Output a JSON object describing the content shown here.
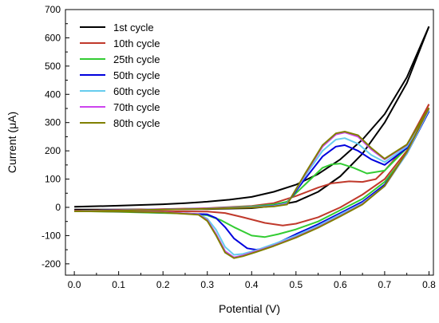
{
  "chart_data": {
    "type": "line",
    "title": "",
    "xlabel": "Potential (V)",
    "ylabel": "Current (μA)",
    "xlim": [
      -0.02,
      0.81
    ],
    "ylim": [
      -240,
      700
    ],
    "xticks": [
      "0.0",
      "0.1",
      "0.2",
      "0.3",
      "0.4",
      "0.5",
      "0.6",
      "0.7",
      "0.8"
    ],
    "yticks": [
      "-200",
      "-100",
      "0",
      "100",
      "200",
      "300",
      "400",
      "500",
      "600",
      "700"
    ],
    "legend_position": "top-left",
    "series": [
      {
        "name": "1st cycle",
        "color": "#000000",
        "forward": [
          [
            0,
            2
          ],
          [
            0.1,
            6
          ],
          [
            0.2,
            11
          ],
          [
            0.25,
            15
          ],
          [
            0.3,
            20
          ],
          [
            0.35,
            27
          ],
          [
            0.4,
            37
          ],
          [
            0.45,
            55
          ],
          [
            0.5,
            80
          ],
          [
            0.55,
            118
          ],
          [
            0.6,
            170
          ],
          [
            0.65,
            240
          ],
          [
            0.7,
            330
          ],
          [
            0.75,
            460
          ],
          [
            0.8,
            640
          ]
        ],
        "reverse": [
          [
            0.8,
            640
          ],
          [
            0.75,
            440
          ],
          [
            0.7,
            300
          ],
          [
            0.65,
            190
          ],
          [
            0.6,
            110
          ],
          [
            0.55,
            55
          ],
          [
            0.5,
            20
          ],
          [
            0.45,
            5
          ],
          [
            0.4,
            -3
          ],
          [
            0.3,
            -6
          ],
          [
            0.2,
            -7
          ],
          [
            0.1,
            -8
          ],
          [
            0,
            -8
          ]
        ]
      },
      {
        "name": "10th cycle",
        "color": "#c0392b",
        "forward": [
          [
            0,
            -12
          ],
          [
            0.1,
            -9
          ],
          [
            0.2,
            -6
          ],
          [
            0.3,
            -3
          ],
          [
            0.4,
            5
          ],
          [
            0.45,
            15
          ],
          [
            0.5,
            40
          ],
          [
            0.55,
            70
          ],
          [
            0.58,
            85
          ],
          [
            0.62,
            92
          ],
          [
            0.65,
            90
          ],
          [
            0.68,
            100
          ],
          [
            0.7,
            130
          ],
          [
            0.75,
            220
          ],
          [
            0.8,
            365
          ]
        ],
        "reverse": [
          [
            0.8,
            365
          ],
          [
            0.75,
            200
          ],
          [
            0.7,
            100
          ],
          [
            0.65,
            45
          ],
          [
            0.6,
            0
          ],
          [
            0.55,
            -35
          ],
          [
            0.5,
            -58
          ],
          [
            0.47,
            -64
          ],
          [
            0.43,
            -55
          ],
          [
            0.38,
            -35
          ],
          [
            0.34,
            -20
          ],
          [
            0.3,
            -15
          ],
          [
            0.2,
            -14
          ],
          [
            0.1,
            -13
          ],
          [
            0,
            -12
          ]
        ]
      },
      {
        "name": "25th cycle",
        "color": "#33cc33",
        "forward": [
          [
            0,
            -13
          ],
          [
            0.1,
            -10
          ],
          [
            0.2,
            -7
          ],
          [
            0.3,
            -4
          ],
          [
            0.4,
            3
          ],
          [
            0.45,
            10
          ],
          [
            0.48,
            20
          ],
          [
            0.52,
            80
          ],
          [
            0.56,
            140
          ],
          [
            0.58,
            152
          ],
          [
            0.6,
            155
          ],
          [
            0.63,
            140
          ],
          [
            0.66,
            120
          ],
          [
            0.7,
            130
          ],
          [
            0.75,
            210
          ],
          [
            0.8,
            340
          ]
        ],
        "reverse": [
          [
            0.8,
            340
          ],
          [
            0.75,
            190
          ],
          [
            0.7,
            90
          ],
          [
            0.65,
            30
          ],
          [
            0.6,
            -10
          ],
          [
            0.55,
            -50
          ],
          [
            0.5,
            -78
          ],
          [
            0.46,
            -95
          ],
          [
            0.43,
            -105
          ],
          [
            0.4,
            -100
          ],
          [
            0.36,
            -70
          ],
          [
            0.33,
            -45
          ],
          [
            0.3,
            -28
          ],
          [
            0.25,
            -22
          ],
          [
            0.2,
            -20
          ],
          [
            0.1,
            -16
          ],
          [
            0,
            -13
          ]
        ]
      },
      {
        "name": "50th cycle",
        "color": "#0000dd",
        "forward": [
          [
            0,
            -13
          ],
          [
            0.1,
            -10
          ],
          [
            0.2,
            -7
          ],
          [
            0.3,
            -4
          ],
          [
            0.4,
            1
          ],
          [
            0.45,
            6
          ],
          [
            0.48,
            15
          ],
          [
            0.52,
            100
          ],
          [
            0.56,
            180
          ],
          [
            0.59,
            215
          ],
          [
            0.61,
            220
          ],
          [
            0.64,
            200
          ],
          [
            0.67,
            170
          ],
          [
            0.7,
            150
          ],
          [
            0.75,
            210
          ],
          [
            0.8,
            340
          ]
        ],
        "reverse": [
          [
            0.8,
            340
          ],
          [
            0.75,
            190
          ],
          [
            0.7,
            80
          ],
          [
            0.65,
            20
          ],
          [
            0.6,
            -20
          ],
          [
            0.55,
            -60
          ],
          [
            0.5,
            -95
          ],
          [
            0.46,
            -125
          ],
          [
            0.43,
            -145
          ],
          [
            0.41,
            -150
          ],
          [
            0.39,
            -145
          ],
          [
            0.36,
            -110
          ],
          [
            0.34,
            -70
          ],
          [
            0.32,
            -38
          ],
          [
            0.3,
            -25
          ],
          [
            0.2,
            -18
          ],
          [
            0.1,
            -15
          ],
          [
            0,
            -13
          ]
        ]
      },
      {
        "name": "60th cycle",
        "color": "#66ccee",
        "forward": [
          [
            0,
            -13
          ],
          [
            0.1,
            -10
          ],
          [
            0.2,
            -7
          ],
          [
            0.3,
            -4
          ],
          [
            0.4,
            1
          ],
          [
            0.45,
            5
          ],
          [
            0.48,
            14
          ],
          [
            0.52,
            110
          ],
          [
            0.56,
            200
          ],
          [
            0.59,
            240
          ],
          [
            0.61,
            245
          ],
          [
            0.64,
            225
          ],
          [
            0.67,
            185
          ],
          [
            0.7,
            160
          ],
          [
            0.75,
            215
          ],
          [
            0.8,
            345
          ]
        ],
        "reverse": [
          [
            0.8,
            345
          ],
          [
            0.75,
            190
          ],
          [
            0.7,
            75
          ],
          [
            0.65,
            15
          ],
          [
            0.6,
            -25
          ],
          [
            0.55,
            -65
          ],
          [
            0.5,
            -100
          ],
          [
            0.45,
            -130
          ],
          [
            0.41,
            -152
          ],
          [
            0.38,
            -165
          ],
          [
            0.36,
            -168
          ],
          [
            0.34,
            -140
          ],
          [
            0.32,
            -80
          ],
          [
            0.3,
            -40
          ],
          [
            0.28,
            -25
          ],
          [
            0.2,
            -17
          ],
          [
            0.1,
            -14
          ],
          [
            0,
            -13
          ]
        ]
      },
      {
        "name": "70th cycle",
        "color": "#cc44ee",
        "forward": [
          [
            0,
            -13
          ],
          [
            0.1,
            -10
          ],
          [
            0.2,
            -7
          ],
          [
            0.3,
            -4
          ],
          [
            0.4,
            0
          ],
          [
            0.45,
            4
          ],
          [
            0.48,
            12
          ],
          [
            0.52,
            115
          ],
          [
            0.56,
            215
          ],
          [
            0.59,
            258
          ],
          [
            0.61,
            265
          ],
          [
            0.64,
            250
          ],
          [
            0.67,
            205
          ],
          [
            0.7,
            170
          ],
          [
            0.75,
            220
          ],
          [
            0.8,
            350
          ]
        ],
        "reverse": [
          [
            0.8,
            350
          ],
          [
            0.75,
            195
          ],
          [
            0.7,
            75
          ],
          [
            0.65,
            12
          ],
          [
            0.6,
            -30
          ],
          [
            0.55,
            -70
          ],
          [
            0.5,
            -105
          ],
          [
            0.45,
            -135
          ],
          [
            0.41,
            -155
          ],
          [
            0.38,
            -170
          ],
          [
            0.36,
            -177
          ],
          [
            0.34,
            -155
          ],
          [
            0.32,
            -95
          ],
          [
            0.3,
            -45
          ],
          [
            0.28,
            -25
          ],
          [
            0.2,
            -17
          ],
          [
            0.1,
            -14
          ],
          [
            0,
            -13
          ]
        ]
      },
      {
        "name": "80th cycle",
        "color": "#808000",
        "forward": [
          [
            0,
            -14
          ],
          [
            0.1,
            -11
          ],
          [
            0.2,
            -8
          ],
          [
            0.3,
            -5
          ],
          [
            0.4,
            -1
          ],
          [
            0.45,
            3
          ],
          [
            0.48,
            10
          ],
          [
            0.52,
            118
          ],
          [
            0.56,
            220
          ],
          [
            0.59,
            262
          ],
          [
            0.61,
            268
          ],
          [
            0.64,
            255
          ],
          [
            0.67,
            210
          ],
          [
            0.7,
            172
          ],
          [
            0.75,
            222
          ],
          [
            0.8,
            352
          ]
        ],
        "reverse": [
          [
            0.8,
            352
          ],
          [
            0.75,
            196
          ],
          [
            0.7,
            76
          ],
          [
            0.65,
            10
          ],
          [
            0.6,
            -32
          ],
          [
            0.55,
            -72
          ],
          [
            0.5,
            -107
          ],
          [
            0.45,
            -137
          ],
          [
            0.41,
            -158
          ],
          [
            0.38,
            -173
          ],
          [
            0.36,
            -180
          ],
          [
            0.34,
            -160
          ],
          [
            0.32,
            -100
          ],
          [
            0.3,
            -48
          ],
          [
            0.28,
            -26
          ],
          [
            0.2,
            -18
          ],
          [
            0.1,
            -15
          ],
          [
            0,
            -14
          ]
        ]
      }
    ]
  }
}
